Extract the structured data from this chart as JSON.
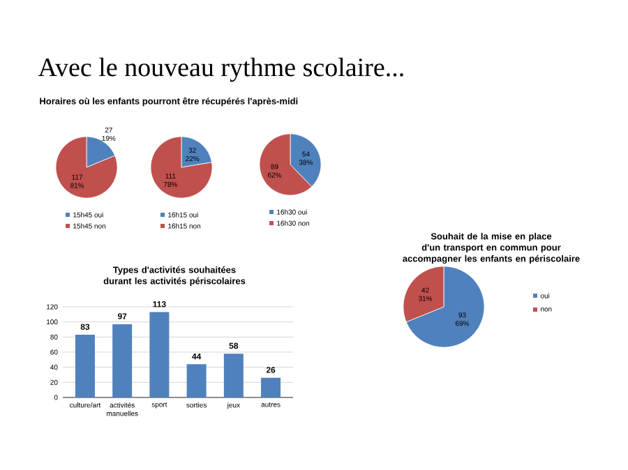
{
  "chart_data": [
    {
      "type": "pie",
      "title": "Horaires où les enfants pourront être récupérés l'après-midi",
      "annotations": [
        "Avec le nouveau rythme scolaire..."
      ],
      "categories": [
        "15h45 oui",
        "15h45 non"
      ],
      "values": [
        27,
        117
      ],
      "colors": [
        "#4f81bd",
        "#c0504d"
      ],
      "value_labels": [
        "27 19%",
        "117 81%"
      ],
      "legend": "bottom"
    },
    {
      "type": "pie",
      "categories": [
        "16h15 oui",
        "16h15 non"
      ],
      "values": [
        32,
        111
      ],
      "colors": [
        "#4f81bd",
        "#c0504d"
      ],
      "value_labels": [
        "32 22%",
        "111 78%"
      ],
      "legend": "bottom"
    },
    {
      "type": "pie",
      "categories": [
        "16h30 oui",
        "16h30 non"
      ],
      "values": [
        54,
        89
      ],
      "colors": [
        "#4f81bd",
        "#c0504d"
      ],
      "value_labels": [
        "54 38%",
        "89 62%"
      ],
      "legend": "bottom"
    },
    {
      "type": "bar",
      "title": "Types d'activités souhaitées durant les activités périscolaires",
      "categories": [
        "culture/art",
        "activités manuelles",
        "sport",
        "sorties",
        "jeux",
        "autres"
      ],
      "values": [
        83,
        97,
        113,
        44,
        58,
        26
      ],
      "color": "#4f81bd",
      "ylim": [
        0,
        120
      ],
      "yticks": [
        0,
        20,
        40,
        60,
        80,
        100,
        120
      ],
      "grid": "y",
      "data_labels": true
    },
    {
      "type": "pie",
      "title": "Souhait de la mise en place d'un transport en commun pour accompagner les enfants en périscolaire",
      "categories": [
        "oui",
        "non"
      ],
      "values": [
        93,
        42
      ],
      "colors": [
        "#4f81bd",
        "#c0504d"
      ],
      "value_labels": [
        "93 69%",
        "42 31%"
      ],
      "legend": "right"
    }
  ]
}
